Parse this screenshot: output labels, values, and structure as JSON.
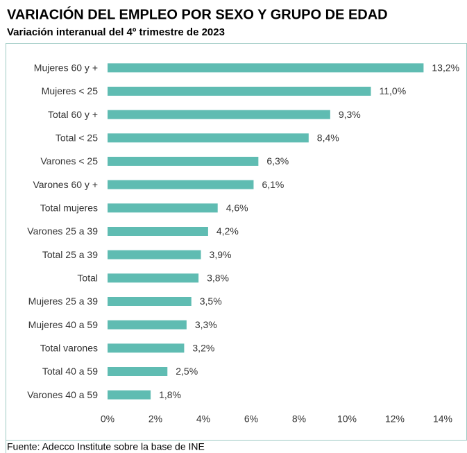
{
  "chart_data": {
    "type": "bar",
    "orientation": "horizontal",
    "title": "VARIACIÓN DEL EMPLEO POR SEXO Y GRUPO DE EDAD",
    "subtitle": "Variación interanual del 4º trimestre de 2023",
    "source": "Fuente: Adecco Institute sobre la base de INE",
    "categories": [
      "Mujeres 60 y +",
      "Mujeres < 25",
      "Total 60 y +",
      "Total < 25",
      "Varones < 25",
      "Varones 60 y +",
      "Total mujeres",
      "Varones 25 a 39",
      "Total 25 a 39",
      "Total",
      "Mujeres 25 a 39",
      "Mujeres 40 a 59",
      "Total varones",
      "Total 40 a 59",
      "Varones 40 a 59"
    ],
    "values": [
      13.2,
      11.0,
      9.3,
      8.4,
      6.3,
      6.1,
      4.6,
      4.2,
      3.9,
      3.8,
      3.5,
      3.3,
      3.2,
      2.5,
      1.8
    ],
    "value_labels": [
      "13,2%",
      "11,0%",
      "9,3%",
      "8,4%",
      "6,3%",
      "6,1%",
      "4,6%",
      "4,2%",
      "3,9%",
      "3,8%",
      "3,5%",
      "3,3%",
      "3,2%",
      "2,5%",
      "1,8%"
    ],
    "color": "#5fbcb2",
    "xlim": [
      0,
      14
    ],
    "xticks": [
      {
        "value": 0,
        "label": "0%"
      },
      {
        "value": 2,
        "label": "2%"
      },
      {
        "value": 4,
        "label": "4%"
      },
      {
        "value": 6,
        "label": "6%"
      },
      {
        "value": 8,
        "label": "8%"
      },
      {
        "value": 10,
        "label": "10%"
      },
      {
        "value": 12,
        "label": "12%"
      },
      {
        "value": 14,
        "label": "14%"
      }
    ],
    "grid": false
  }
}
